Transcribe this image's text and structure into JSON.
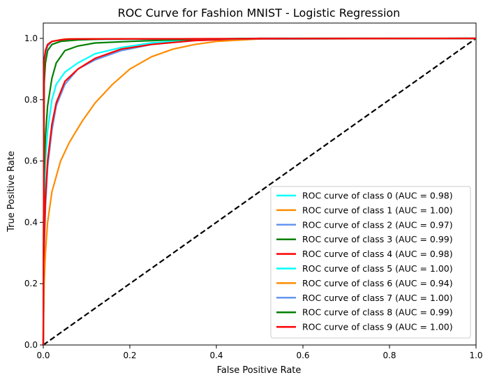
{
  "chart_data": {
    "type": "line",
    "title": "ROC Curve for Fashion MNIST - Logistic Regression",
    "xlabel": "False Positive Rate",
    "ylabel": "True Positive Rate",
    "xlim": [
      0.0,
      1.0
    ],
    "ylim": [
      0.0,
      1.05
    ],
    "x_ticks": [
      "0.0",
      "0.2",
      "0.4",
      "0.6",
      "0.8",
      "1.0"
    ],
    "y_ticks": [
      "0.0",
      "0.2",
      "0.4",
      "0.6",
      "0.8",
      "1.0"
    ],
    "grid": false,
    "legend_position": "lower-right",
    "reference_line": {
      "x": [
        0,
        1
      ],
      "y": [
        0,
        1
      ],
      "style": "dashed",
      "color": "#000000"
    },
    "series": [
      {
        "name": "ROC curve of class 0 (AUC = 0.98)",
        "color": "#00ffff",
        "x": [
          0,
          0.002,
          0.005,
          0.01,
          0.02,
          0.03,
          0.05,
          0.08,
          0.12,
          0.18,
          0.25,
          0.35,
          0.45,
          1.0
        ],
        "y": [
          0,
          0.45,
          0.6,
          0.7,
          0.8,
          0.85,
          0.89,
          0.92,
          0.95,
          0.97,
          0.985,
          0.995,
          1.0,
          1.0
        ]
      },
      {
        "name": "ROC curve of class 1 (AUC = 1.00)",
        "color": "#ff8c00",
        "x": [
          0,
          0.002,
          0.005,
          0.01,
          0.02,
          0.05,
          1.0
        ],
        "y": [
          0,
          0.9,
          0.96,
          0.98,
          0.99,
          0.998,
          1.0
        ]
      },
      {
        "name": "ROC curve of class 2 (AUC = 0.97)",
        "color": "#6495ed",
        "x": [
          0,
          0.002,
          0.005,
          0.01,
          0.02,
          0.03,
          0.05,
          0.08,
          0.12,
          0.18,
          0.25,
          0.35,
          0.5,
          1.0
        ],
        "y": [
          0,
          0.3,
          0.45,
          0.58,
          0.7,
          0.78,
          0.85,
          0.9,
          0.93,
          0.96,
          0.98,
          0.993,
          1.0,
          1.0
        ]
      },
      {
        "name": "ROC curve of class 3 (AUC = 0.99)",
        "color": "#008000",
        "x": [
          0,
          0.002,
          0.005,
          0.01,
          0.02,
          0.03,
          0.05,
          0.08,
          0.12,
          0.2,
          0.3,
          0.42,
          1.0
        ],
        "y": [
          0,
          0.55,
          0.68,
          0.78,
          0.87,
          0.92,
          0.96,
          0.975,
          0.985,
          0.99,
          0.995,
          0.998,
          1.0
        ]
      },
      {
        "name": "ROC curve of class 4 (AUC = 0.98)",
        "color": "#ff0000",
        "x": [
          0,
          0.002,
          0.005,
          0.01,
          0.02,
          0.03,
          0.05,
          0.08,
          0.12,
          0.18,
          0.25,
          0.35,
          0.5,
          1.0
        ],
        "y": [
          0,
          0.32,
          0.48,
          0.6,
          0.72,
          0.79,
          0.86,
          0.9,
          0.935,
          0.965,
          0.98,
          0.993,
          1.0,
          1.0
        ]
      },
      {
        "name": "ROC curve of class 5 (AUC = 1.00)",
        "color": "#00ffff",
        "x": [
          0,
          0.002,
          0.005,
          0.01,
          0.02,
          0.05,
          1.0
        ],
        "y": [
          0,
          0.88,
          0.95,
          0.98,
          0.99,
          0.997,
          1.0
        ]
      },
      {
        "name": "ROC curve of class 6 (AUC = 0.94)",
        "color": "#ff8c00",
        "x": [
          0,
          0.002,
          0.005,
          0.01,
          0.02,
          0.04,
          0.06,
          0.09,
          0.12,
          0.16,
          0.2,
          0.25,
          0.3,
          0.35,
          0.4,
          0.5,
          0.6,
          1.0
        ],
        "y": [
          0,
          0.2,
          0.3,
          0.4,
          0.5,
          0.6,
          0.66,
          0.73,
          0.79,
          0.85,
          0.9,
          0.94,
          0.965,
          0.98,
          0.99,
          0.998,
          1.0,
          1.0
        ]
      },
      {
        "name": "ROC curve of class 7 (AUC = 1.00)",
        "color": "#6495ed",
        "x": [
          0,
          0.002,
          0.005,
          0.01,
          0.02,
          0.05,
          1.0
        ],
        "y": [
          0,
          0.9,
          0.95,
          0.975,
          0.99,
          0.997,
          1.0
        ]
      },
      {
        "name": "ROC curve of class 8 (AUC = 0.99)",
        "color": "#008000",
        "x": [
          0,
          0.002,
          0.005,
          0.01,
          0.02,
          0.04,
          0.08,
          0.15,
          1.0
        ],
        "y": [
          0,
          0.85,
          0.92,
          0.96,
          0.98,
          0.99,
          0.995,
          0.998,
          1.0
        ]
      },
      {
        "name": "ROC curve of class 9 (AUC = 1.00)",
        "color": "#ff0000",
        "x": [
          0,
          0.002,
          0.005,
          0.01,
          0.02,
          0.04,
          0.06,
          1.0
        ],
        "y": [
          0,
          0.93,
          0.96,
          0.98,
          0.99,
          0.995,
          0.998,
          1.0
        ]
      }
    ]
  }
}
